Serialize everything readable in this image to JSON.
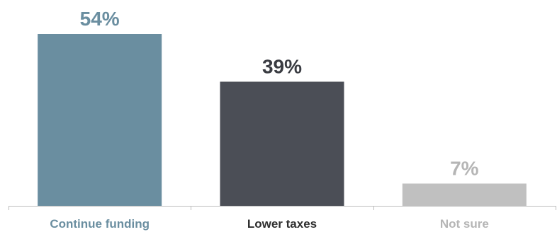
{
  "chart_data": {
    "type": "bar",
    "categories": [
      "Continue funding",
      "Lower taxes",
      "Not sure"
    ],
    "values": [
      54,
      39,
      7
    ],
    "value_labels": [
      "54%",
      "39%",
      "7%"
    ],
    "colors": [
      "#6a8ea0",
      "#4b4e56",
      "#c0c0c0"
    ],
    "label_colors": [
      "#6a8ea0",
      "#2e2e2e",
      "#b5b5b5"
    ],
    "value_label_colors": [
      "#6a8ea0",
      "#3a3c42",
      "#b5b5b5"
    ],
    "axis_color": "#bdbdbd",
    "ylim": [
      0,
      54
    ],
    "title": "",
    "xlabel": "",
    "ylabel": "",
    "grid": false,
    "legend": "none"
  }
}
